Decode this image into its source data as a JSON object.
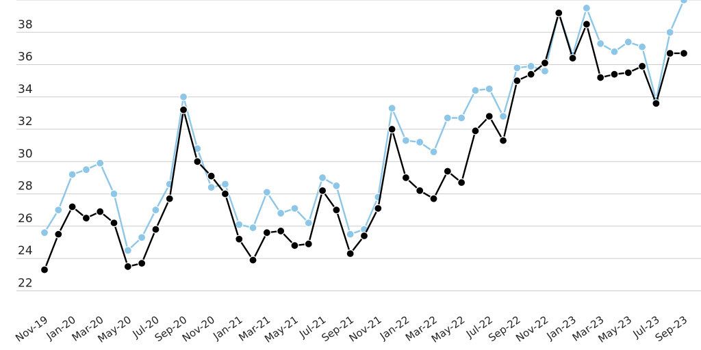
{
  "chart_data": {
    "type": "line",
    "title": "",
    "xlabel": "",
    "ylabel": "",
    "ylim": [
      21,
      40
    ],
    "yticks": [
      22,
      24,
      26,
      28,
      30,
      32,
      34,
      36,
      38
    ],
    "grid": true,
    "x": [
      "Nov-19",
      "Dec-19",
      "Jan-20",
      "Feb-20",
      "Mar-20",
      "Apr-20",
      "May-20",
      "Jun-20",
      "Jul-20",
      "Aug-20",
      "Sep-20",
      "Oct-20",
      "Nov-20",
      "Dec-20",
      "Jan-21",
      "Feb-21",
      "Mar-21",
      "Apr-21",
      "May-21",
      "Jun-21",
      "Jul-21",
      "Aug-21",
      "Sep-21",
      "Oct-21",
      "Nov-21",
      "Dec-21",
      "Jan-22",
      "Feb-22",
      "Mar-22",
      "Apr-22",
      "May-22",
      "Jun-22",
      "Jul-22",
      "Aug-22",
      "Sep-22",
      "Oct-22",
      "Nov-22",
      "Dec-22",
      "Jan-23",
      "Feb-23",
      "Mar-23",
      "Apr-23",
      "May-23",
      "Jun-23",
      "Jul-23",
      "Aug-23",
      "Sep-23"
    ],
    "xticklabels": [
      "Nov-19",
      "Jan-20",
      "Mar-20",
      "May-20",
      "Jul-20",
      "Sep-20",
      "Nov-20",
      "Jan-21",
      "Mar-21",
      "May-21",
      "Jul-21",
      "Sep-21",
      "Nov-21",
      "Jan-22",
      "Mar-22",
      "May-22",
      "Jul-22",
      "Sep-22",
      "Nov-22",
      "Jan-23",
      "Mar-23",
      "May-23",
      "Jul-23",
      "Sep-23"
    ],
    "series": [
      {
        "color": "#8ec6e8",
        "values": [
          25.6,
          27.0,
          29.2,
          29.5,
          29.9,
          28.0,
          24.5,
          25.3,
          27.0,
          28.6,
          34.0,
          30.8,
          28.4,
          28.6,
          26.1,
          25.9,
          28.1,
          26.8,
          27.1,
          26.2,
          29.0,
          28.5,
          25.5,
          25.8,
          27.8,
          33.3,
          31.3,
          31.2,
          30.6,
          32.7,
          32.7,
          34.4,
          34.5,
          32.8,
          35.8,
          35.9,
          35.6,
          39.2,
          36.6,
          39.5,
          37.3,
          36.8,
          37.4,
          37.1,
          33.8,
          38.0,
          40.0
        ]
      },
      {
        "color": "#000000",
        "values": [
          23.3,
          25.5,
          27.2,
          26.5,
          26.9,
          26.2,
          23.5,
          23.7,
          25.8,
          27.7,
          33.2,
          30.0,
          29.1,
          28.0,
          25.2,
          23.9,
          25.6,
          25.7,
          24.8,
          24.9,
          28.2,
          27.0,
          24.3,
          25.4,
          27.1,
          32.0,
          29.0,
          28.2,
          27.7,
          29.4,
          28.7,
          31.9,
          32.8,
          31.3,
          35.0,
          35.4,
          36.1,
          39.2,
          36.4,
          38.5,
          35.2,
          35.4,
          35.5,
          35.9,
          33.6,
          36.7,
          36.7
        ]
      }
    ]
  }
}
